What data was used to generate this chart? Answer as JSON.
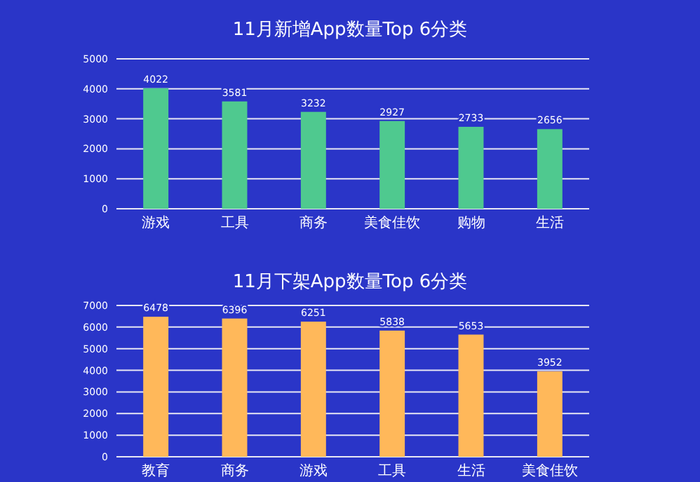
{
  "chart_data": [
    {
      "type": "bar",
      "title": "11月新增App数量Top 6分类",
      "categories": [
        "游戏",
        "工具",
        "商务",
        "美食佳饮",
        "购物",
        "生活"
      ],
      "values": [
        4022,
        3581,
        3232,
        2927,
        2733,
        2656
      ],
      "color": "#4fc98f",
      "ylim": [
        0,
        5000
      ],
      "yticks": [
        0,
        1000,
        2000,
        3000,
        4000,
        5000
      ],
      "grid": "y",
      "data_labels": true
    },
    {
      "type": "bar",
      "title": "11月下架App数量Top 6分类",
      "categories": [
        "教育",
        "商务",
        "游戏",
        "工具",
        "生活",
        "美食佳饮"
      ],
      "values": [
        6478,
        6396,
        6251,
        5838,
        5653,
        3952
      ],
      "color": "#ffb85a",
      "ylim": [
        0,
        7000
      ],
      "yticks": [
        0,
        1000,
        2000,
        3000,
        4000,
        5000,
        6000,
        7000
      ],
      "grid": "y",
      "data_labels": true
    }
  ]
}
